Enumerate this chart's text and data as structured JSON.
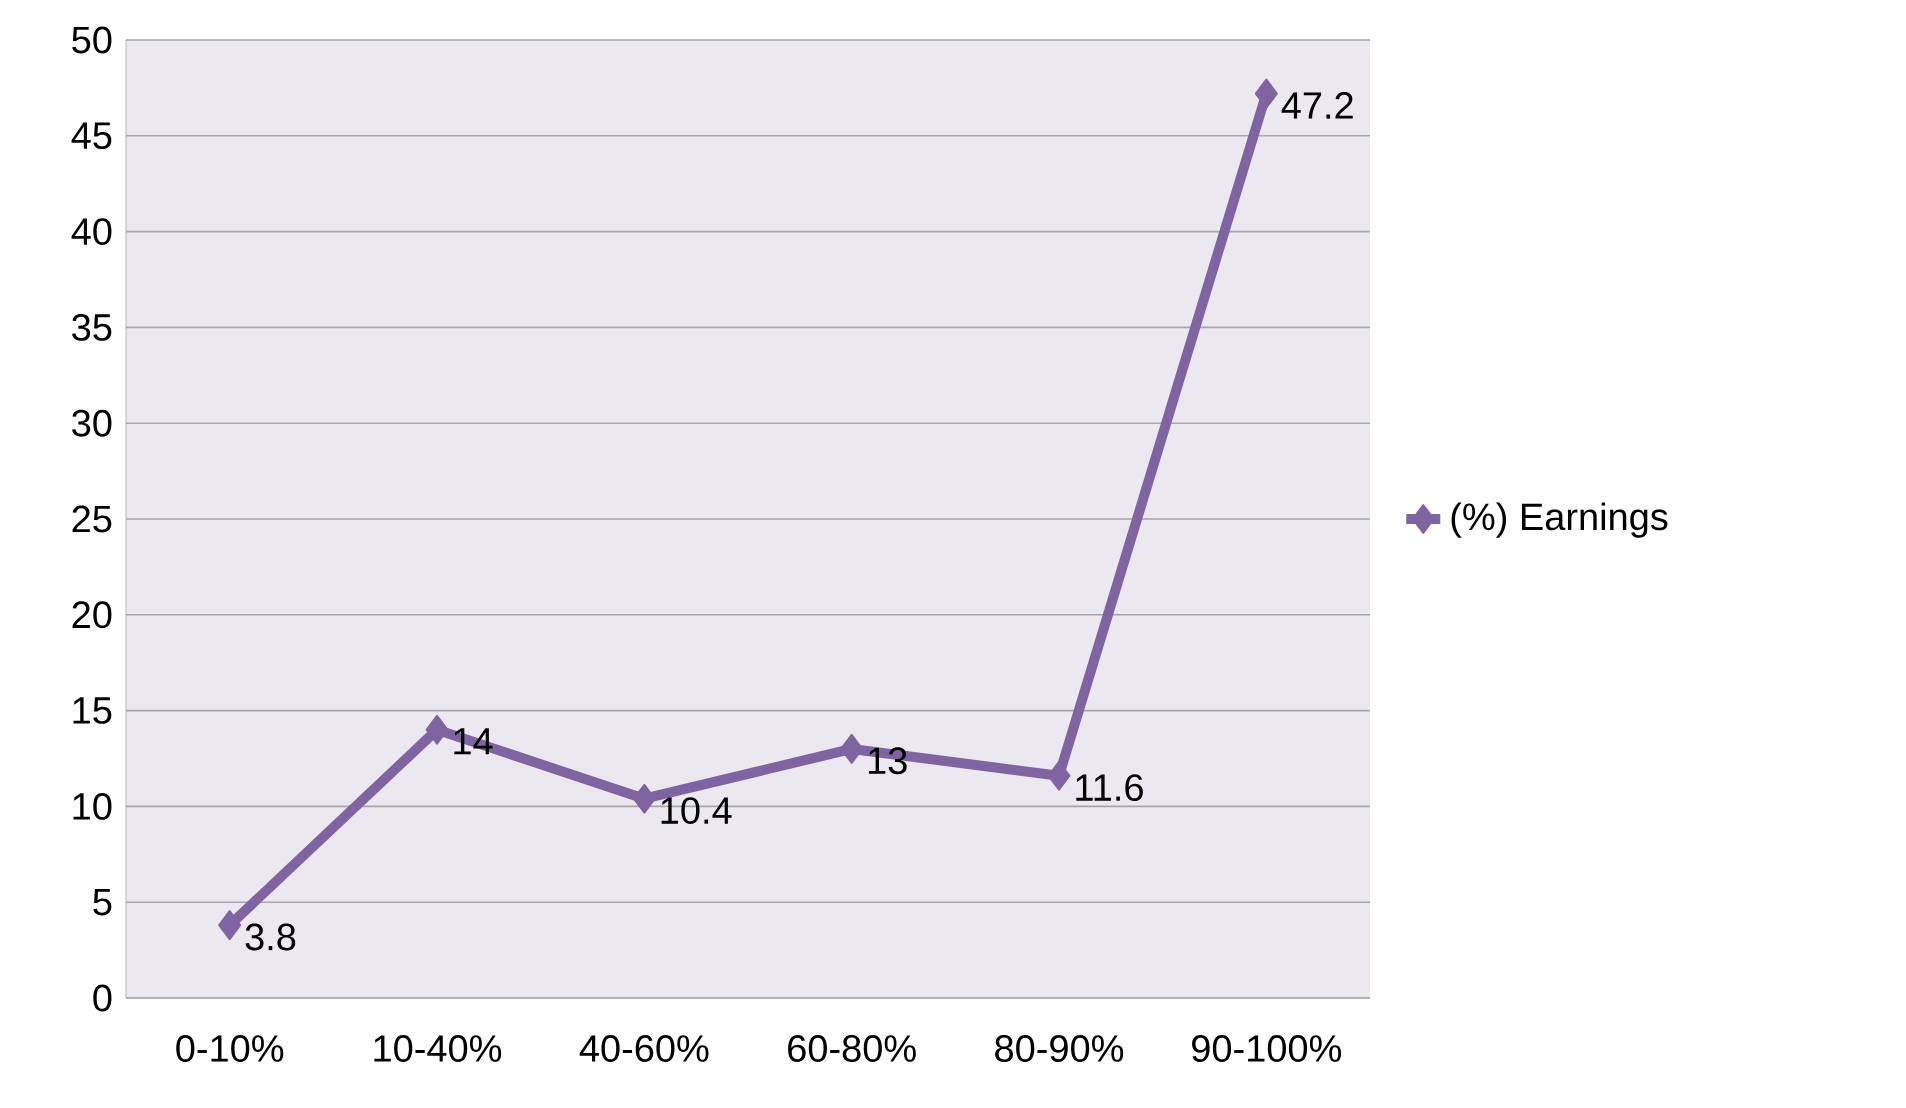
{
  "chart_data": {
    "type": "line",
    "categories": [
      "0-10%",
      "10-40%",
      "40-60%",
      "60-80%",
      "80-90%",
      "90-100%"
    ],
    "series": [
      {
        "name": "(%) Earnings",
        "color": "#8064a2",
        "values": [
          3.8,
          14,
          10.4,
          13,
          11.6,
          47.2
        ]
      }
    ],
    "ylim": [
      0,
      50
    ],
    "yticks": [
      0,
      5,
      10,
      15,
      20,
      25,
      30,
      35,
      40,
      45,
      50
    ],
    "grid": "y",
    "legend": "right",
    "marker": "diamond",
    "data_labels": true
  }
}
